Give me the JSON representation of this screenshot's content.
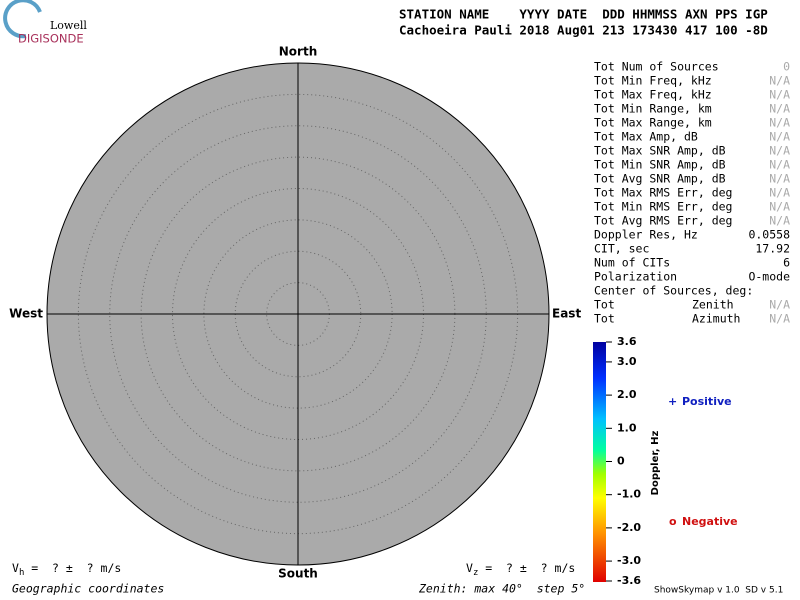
{
  "logo": {
    "top": "Lowell",
    "bottom": "DIGISONDE"
  },
  "header": {
    "labels": "STATION NAME    YYYY DATE  DDD HHMMSS AXN PPS IGP",
    "values": "Cachoeira Pauli 2018 Aug01 213 173430 417 100 -8D"
  },
  "compass": {
    "north": "North",
    "south": "South",
    "east": "East",
    "west": "West"
  },
  "stats": [
    {
      "label": "Tot Num of Sources",
      "value": "0"
    },
    {
      "label": "Tot Min Freq, kHz",
      "value": "N/A"
    },
    {
      "label": "Tot Max Freq, kHz",
      "value": "N/A"
    },
    {
      "label": "Tot Min Range, km",
      "value": "N/A"
    },
    {
      "label": "Tot Max Range, km",
      "value": "N/A"
    },
    {
      "label": "Tot Max Amp, dB",
      "value": "N/A"
    },
    {
      "label": "Tot Max SNR Amp, dB",
      "value": "N/A"
    },
    {
      "label": "Tot Min SNR Amp, dB",
      "value": "N/A"
    },
    {
      "label": "Tot Avg SNR Amp, dB",
      "value": "N/A"
    },
    {
      "label": "Tot Max RMS Err, deg",
      "value": "N/A"
    },
    {
      "label": "Tot Min RMS Err, deg",
      "value": "N/A"
    },
    {
      "label": "Tot Avg RMS Err, deg",
      "value": "N/A"
    },
    {
      "label": "Doppler Res, Hz",
      "value": "0.0558"
    },
    {
      "label": "CIT, sec",
      "value": "17.92"
    },
    {
      "label": "Num of CITs",
      "value": "6"
    },
    {
      "label": "Polarization",
      "value": "O-mode"
    }
  ],
  "center": {
    "title": "Center of Sources, deg:",
    "rows": [
      {
        "label": "Tot",
        "name": "Zenith",
        "value": "N/A"
      },
      {
        "label": "Tot",
        "name": "Azimuth",
        "value": "N/A"
      }
    ]
  },
  "colorbar": {
    "label": "Doppler, Hz",
    "ticks": [
      {
        "value": 3.6,
        "label": "3.6"
      },
      {
        "value": 3,
        "label": "3.0"
      },
      {
        "value": 2,
        "label": "2.0"
      },
      {
        "value": 1,
        "label": "1.0"
      },
      0,
      {
        "value": -1,
        "label": "-1.0"
      },
      {
        "value": -2,
        "label": "-2.0"
      },
      {
        "value": -3,
        "label": "-3.0"
      },
      {
        "value": -3.6,
        "label": "-3.6"
      }
    ]
  },
  "legend": {
    "positive": {
      "symbol": "+",
      "text": "Positive"
    },
    "negative": {
      "symbol": "o",
      "text": "Negative"
    }
  },
  "footer": {
    "vh": {
      "v": "V",
      "sub": "h",
      "rest": " =  ? ±  ? m/s"
    },
    "vz": {
      "v": "V",
      "sub": "z",
      "rest": " =  ? ±  ? m/s"
    },
    "coords": "Geographic coordinates",
    "zenith": "Zenith: max 40°  step 5°",
    "version": "ShowSkymap v 1.0  SD v 5.1"
  }
}
